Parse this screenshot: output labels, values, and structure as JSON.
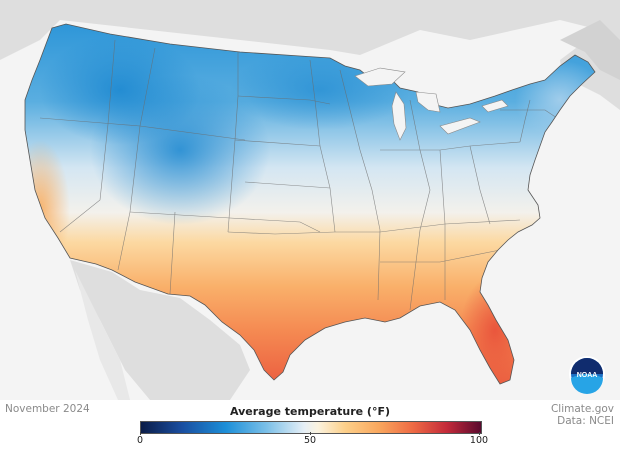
{
  "date_label": "November 2024",
  "credit": {
    "line1": "Climate.gov",
    "line2": "Data: NCEI"
  },
  "legend": {
    "title": "Average temperature (°F)",
    "ticks": [
      "0",
      "50",
      "100"
    ]
  },
  "logo": {
    "text": "NOAA"
  },
  "colors": {
    "cold": "#1d8fd8",
    "neutral": "#eef3f7",
    "warm": "#f9a75e",
    "hot": "#ee6a44",
    "land_outside": "#dedede",
    "water": "#f4f4f4"
  }
}
